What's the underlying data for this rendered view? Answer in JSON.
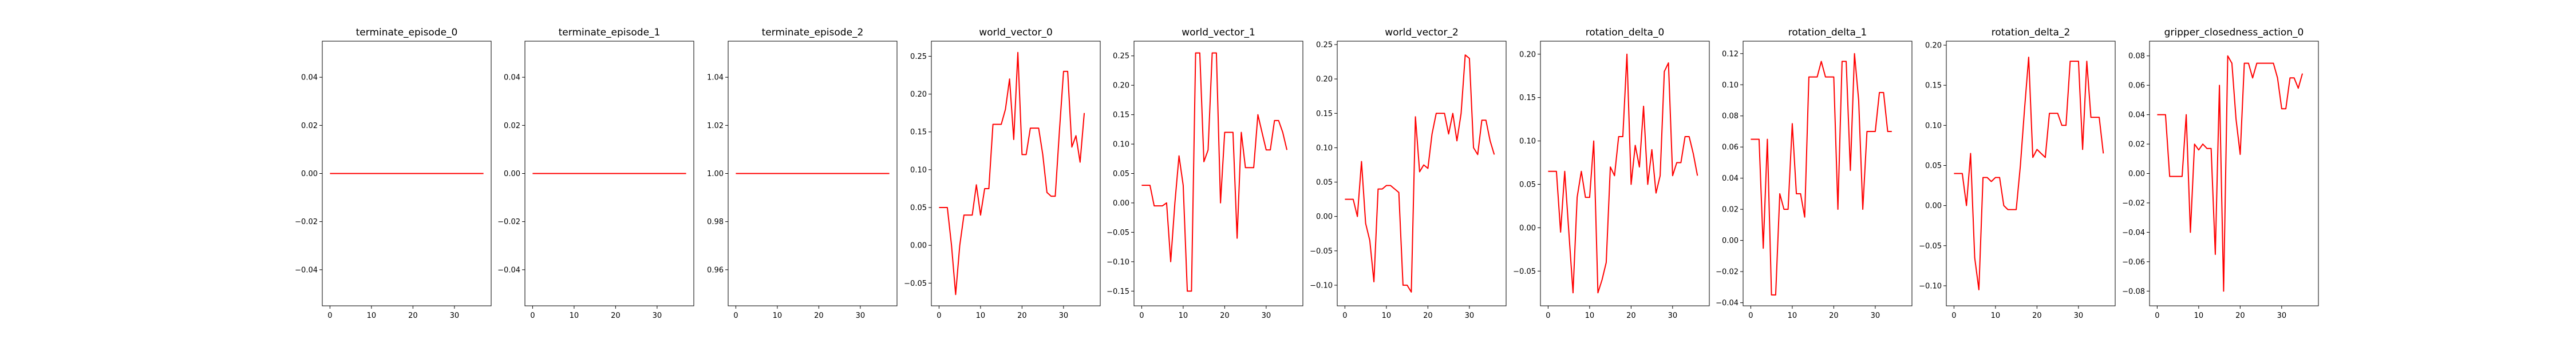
{
  "chart_data": [
    {
      "type": "line",
      "title": "terminate_episode_0",
      "xlim": [
        -1.85,
        38.85
      ],
      "ylim": [
        -0.055,
        0.055
      ],
      "xticks": [
        0,
        10,
        20,
        30
      ],
      "xtick_labels": [
        "0",
        "10",
        "20",
        "30"
      ],
      "yticks": [
        -0.04,
        -0.02,
        0.0,
        0.02,
        0.04
      ],
      "ytick_labels": [
        "−0.04",
        "−0.02",
        "0.00",
        "0.02",
        "0.04"
      ],
      "series": [
        {
          "color": "#ff0000",
          "x": [
            0,
            37
          ],
          "y": [
            0,
            0
          ]
        }
      ]
    },
    {
      "type": "line",
      "title": "terminate_episode_1",
      "xlim": [
        -1.85,
        38.85
      ],
      "ylim": [
        -0.055,
        0.055
      ],
      "xticks": [
        0,
        10,
        20,
        30
      ],
      "xtick_labels": [
        "0",
        "10",
        "20",
        "30"
      ],
      "yticks": [
        -0.04,
        -0.02,
        0.0,
        0.02,
        0.04
      ],
      "ytick_labels": [
        "−0.04",
        "−0.02",
        "0.00",
        "0.02",
        "0.04"
      ],
      "series": [
        {
          "color": "#ff0000",
          "x": [
            0,
            37
          ],
          "y": [
            0,
            0
          ]
        }
      ]
    },
    {
      "type": "line",
      "title": "terminate_episode_2",
      "xlim": [
        -1.85,
        38.85
      ],
      "ylim": [
        0.945,
        1.055
      ],
      "xticks": [
        0,
        10,
        20,
        30
      ],
      "xtick_labels": [
        "0",
        "10",
        "20",
        "30"
      ],
      "yticks": [
        0.96,
        0.98,
        1.0,
        1.02,
        1.04
      ],
      "ytick_labels": [
        "0.96",
        "0.98",
        "1.00",
        "1.02",
        "1.04"
      ],
      "series": [
        {
          "color": "#ff0000",
          "x": [
            0,
            37
          ],
          "y": [
            1,
            1
          ]
        }
      ]
    },
    {
      "type": "line",
      "title": "world_vector_0",
      "xlim": [
        -1.85,
        38.85
      ],
      "ylim": [
        -0.08,
        0.27
      ],
      "xticks": [
        0,
        10,
        20,
        30
      ],
      "xtick_labels": [
        "0",
        "10",
        "20",
        "30"
      ],
      "yticks": [
        -0.05,
        0.0,
        0.05,
        0.1,
        0.15,
        0.2,
        0.25
      ],
      "ytick_labels": [
        "−0.05",
        "0.00",
        "0.05",
        "0.10",
        "0.15",
        "0.20",
        "0.25"
      ],
      "series": [
        {
          "color": "#ff0000",
          "x": [
            0,
            1,
            2,
            3,
            4,
            5,
            6,
            7,
            8,
            9,
            10,
            11,
            12,
            13,
            14,
            15,
            16,
            17,
            18,
            19,
            20,
            21,
            22,
            23,
            24,
            25,
            26,
            27,
            28,
            29,
            30,
            31,
            32,
            33,
            34,
            35,
            36,
            37
          ],
          "y": [
            0.05,
            0.05,
            0.05,
            0.0,
            -0.065,
            0.0,
            0.04,
            0.04,
            0.04,
            0.08,
            0.04,
            0.075,
            0.075,
            0.16,
            0.16,
            0.16,
            0.18,
            0.22,
            0.14,
            0.255,
            0.12,
            0.12,
            0.155,
            0.155,
            0.155,
            0.12,
            0.07,
            0.065,
            0.065,
            0.15,
            0.23,
            0.23,
            0.13,
            0.145,
            0.11,
            0.175,
            null,
            null
          ]
        }
      ]
    },
    {
      "type": "line",
      "title": "world_vector_1",
      "xlim": [
        -1.85,
        38.85
      ],
      "ylim": [
        -0.175,
        0.275
      ],
      "xticks": [
        0,
        10,
        20,
        30
      ],
      "xtick_labels": [
        "0",
        "10",
        "20",
        "30"
      ],
      "yticks": [
        -0.15,
        -0.1,
        -0.05,
        0.0,
        0.05,
        0.1,
        0.15,
        0.2,
        0.25
      ],
      "ytick_labels": [
        "−0.15",
        "−0.10",
        "−0.05",
        "0.00",
        "0.05",
        "0.10",
        "0.15",
        "0.20",
        "0.25"
      ],
      "series": [
        {
          "color": "#ff0000",
          "x": [
            0,
            1,
            2,
            3,
            4,
            5,
            6,
            7,
            8,
            9,
            10,
            11,
            12,
            13,
            14,
            15,
            16,
            17,
            18,
            19,
            20,
            21,
            22,
            23,
            24,
            25,
            26,
            27,
            28,
            29,
            30,
            31,
            32,
            33,
            34,
            35,
            36,
            37
          ],
          "y": [
            0.03,
            0.03,
            0.03,
            -0.005,
            -0.005,
            -0.005,
            0.0,
            -0.1,
            0.0,
            0.08,
            0.03,
            -0.15,
            -0.15,
            0.255,
            0.255,
            0.07,
            0.09,
            0.255,
            0.255,
            0.0,
            0.12,
            0.12,
            0.12,
            -0.06,
            0.12,
            0.06,
            0.06,
            0.06,
            0.15,
            0.12,
            0.09,
            0.09,
            0.14,
            0.14,
            0.12,
            0.09,
            null,
            null
          ]
        }
      ]
    },
    {
      "type": "line",
      "title": "world_vector_2",
      "xlim": [
        -1.85,
        38.85
      ],
      "ylim": [
        -0.13,
        0.255
      ],
      "xticks": [
        0,
        10,
        20,
        30
      ],
      "xtick_labels": [
        "0",
        "10",
        "20",
        "30"
      ],
      "yticks": [
        -0.1,
        -0.05,
        0.0,
        0.05,
        0.1,
        0.15,
        0.2,
        0.25
      ],
      "ytick_labels": [
        "−0.10",
        "−0.05",
        "0.00",
        "0.05",
        "0.10",
        "0.15",
        "0.20",
        "0.25"
      ],
      "series": [
        {
          "color": "#ff0000",
          "x": [
            0,
            1,
            2,
            3,
            4,
            5,
            6,
            7,
            8,
            9,
            10,
            11,
            12,
            13,
            14,
            15,
            16,
            17,
            18,
            19,
            20,
            21,
            22,
            23,
            24,
            25,
            26,
            27,
            28,
            29,
            30,
            31,
            32,
            33,
            34,
            35,
            36,
            37
          ],
          "y": [
            0.025,
            0.025,
            0.025,
            0.0,
            0.08,
            -0.01,
            -0.035,
            -0.095,
            0.04,
            0.04,
            0.045,
            0.045,
            0.04,
            0.035,
            -0.1,
            -0.1,
            -0.11,
            0.145,
            0.065,
            0.075,
            0.07,
            0.12,
            0.15,
            0.15,
            0.15,
            0.12,
            0.15,
            0.11,
            0.15,
            0.235,
            0.23,
            0.1,
            0.09,
            0.14,
            0.14,
            0.11,
            0.09,
            null
          ]
        }
      ]
    },
    {
      "type": "line",
      "title": "rotation_delta_0",
      "xlim": [
        -1.85,
        38.85
      ],
      "ylim": [
        -0.09,
        0.215
      ],
      "xticks": [
        0,
        10,
        20,
        30
      ],
      "xtick_labels": [
        "0",
        "10",
        "20",
        "30"
      ],
      "yticks": [
        -0.05,
        0.0,
        0.05,
        0.1,
        0.15,
        0.2
      ],
      "ytick_labels": [
        "−0.05",
        "0.00",
        "0.05",
        "0.10",
        "0.15",
        "0.20"
      ],
      "series": [
        {
          "color": "#ff0000",
          "x": [
            0,
            1,
            2,
            3,
            4,
            5,
            6,
            7,
            8,
            9,
            10,
            11,
            12,
            13,
            14,
            15,
            16,
            17,
            18,
            19,
            20,
            21,
            22,
            23,
            24,
            25,
            26,
            27,
            28,
            29,
            30,
            31,
            32,
            33,
            34,
            35,
            36,
            37
          ],
          "y": [
            0.065,
            0.065,
            0.065,
            -0.005,
            0.065,
            -0.005,
            -0.075,
            0.035,
            0.065,
            0.035,
            0.035,
            0.1,
            -0.075,
            -0.06,
            -0.04,
            0.07,
            0.06,
            0.105,
            0.105,
            0.2,
            0.05,
            0.095,
            0.07,
            0.14,
            0.05,
            0.09,
            0.04,
            0.06,
            0.18,
            0.19,
            0.06,
            0.075,
            0.075,
            0.105,
            0.105,
            0.085,
            0.06,
            null
          ]
        }
      ]
    },
    {
      "type": "line",
      "title": "rotation_delta_1",
      "xlim": [
        -1.85,
        38.85
      ],
      "ylim": [
        -0.042,
        0.128
      ],
      "xticks": [
        0,
        10,
        20,
        30
      ],
      "xtick_labels": [
        "0",
        "10",
        "20",
        "30"
      ],
      "yticks": [
        -0.04,
        -0.02,
        0.0,
        0.02,
        0.04,
        0.06,
        0.08,
        0.1,
        0.12
      ],
      "ytick_labels": [
        "−0.04",
        "−0.02",
        "0.00",
        "0.02",
        "0.04",
        "0.06",
        "0.08",
        "0.10",
        "0.12"
      ],
      "series": [
        {
          "color": "#ff0000",
          "x": [
            0,
            1,
            2,
            3,
            4,
            5,
            6,
            7,
            8,
            9,
            10,
            11,
            12,
            13,
            14,
            15,
            16,
            17,
            18,
            19,
            20,
            21,
            22,
            23,
            24,
            25,
            26,
            27,
            28,
            29,
            30,
            31,
            32,
            33,
            34,
            35,
            36,
            37
          ],
          "y": [
            0.065,
            0.065,
            0.065,
            -0.005,
            0.065,
            -0.035,
            -0.035,
            0.03,
            0.02,
            0.02,
            0.075,
            0.03,
            0.03,
            0.015,
            0.105,
            0.105,
            0.105,
            0.115,
            0.105,
            0.105,
            0.105,
            0.02,
            0.115,
            0.115,
            0.045,
            0.12,
            0.09,
            0.02,
            0.07,
            0.07,
            0.07,
            0.095,
            0.095,
            0.07,
            0.07,
            null,
            null,
            null
          ]
        }
      ]
    },
    {
      "type": "line",
      "title": "rotation_delta_2",
      "xlim": [
        -1.85,
        38.85
      ],
      "ylim": [
        -0.125,
        0.205
      ],
      "xticks": [
        0,
        10,
        20,
        30
      ],
      "xtick_labels": [
        "0",
        "10",
        "20",
        "30"
      ],
      "yticks": [
        -0.1,
        -0.05,
        0.0,
        0.05,
        0.1,
        0.15,
        0.2
      ],
      "ytick_labels": [
        "−0.10",
        "−0.05",
        "0.00",
        "0.05",
        "0.10",
        "0.15",
        "0.20"
      ],
      "series": [
        {
          "color": "#ff0000",
          "x": [
            0,
            1,
            2,
            3,
            4,
            5,
            6,
            7,
            8,
            9,
            10,
            11,
            12,
            13,
            14,
            15,
            16,
            17,
            18,
            19,
            20,
            21,
            22,
            23,
            24,
            25,
            26,
            27,
            28,
            29,
            30,
            31,
            32,
            33,
            34,
            35,
            36,
            37
          ],
          "y": [
            0.04,
            0.04,
            0.04,
            0.0,
            0.065,
            -0.065,
            -0.105,
            0.035,
            0.035,
            0.03,
            0.035,
            0.035,
            0.0,
            -0.005,
            -0.005,
            -0.005,
            0.05,
            0.12,
            0.185,
            0.06,
            0.07,
            0.065,
            0.06,
            0.115,
            0.115,
            0.115,
            0.1,
            0.1,
            0.18,
            0.18,
            0.18,
            0.07,
            0.18,
            0.11,
            0.11,
            0.11,
            0.065,
            null
          ]
        }
      ]
    },
    {
      "type": "line",
      "title": "gripper_closedness_action_0",
      "xlim": [
        -1.85,
        38.85
      ],
      "ylim": [
        -0.09,
        0.09
      ],
      "xticks": [
        0,
        10,
        20,
        30
      ],
      "xtick_labels": [
        "0",
        "10",
        "20",
        "30"
      ],
      "yticks": [
        -0.08,
        -0.06,
        -0.04,
        -0.02,
        0.0,
        0.02,
        0.04,
        0.06,
        0.08
      ],
      "ytick_labels": [
        "−0.08",
        "−0.06",
        "−0.04",
        "−0.02",
        "0.00",
        "0.02",
        "0.04",
        "0.06",
        "0.08"
      ],
      "series": [
        {
          "color": "#ff0000",
          "x": [
            0,
            1,
            2,
            3,
            4,
            5,
            6,
            7,
            8,
            9,
            10,
            11,
            12,
            13,
            14,
            15,
            16,
            17,
            18,
            19,
            20,
            21,
            22,
            23,
            24,
            25,
            26,
            27,
            28,
            29,
            30,
            31,
            32,
            33,
            34,
            35,
            36,
            37
          ],
          "y": [
            0.04,
            0.04,
            0.04,
            -0.002,
            -0.002,
            -0.002,
            -0.002,
            0.04,
            -0.04,
            0.02,
            0.016,
            0.02,
            0.017,
            0.017,
            -0.055,
            0.06,
            -0.08,
            0.08,
            0.075,
            0.037,
            0.013,
            0.075,
            0.075,
            0.065,
            0.075,
            0.075,
            0.075,
            0.075,
            0.075,
            0.065,
            0.044,
            0.044,
            0.065,
            0.065,
            0.058,
            0.068,
            null,
            null
          ]
        }
      ]
    }
  ]
}
